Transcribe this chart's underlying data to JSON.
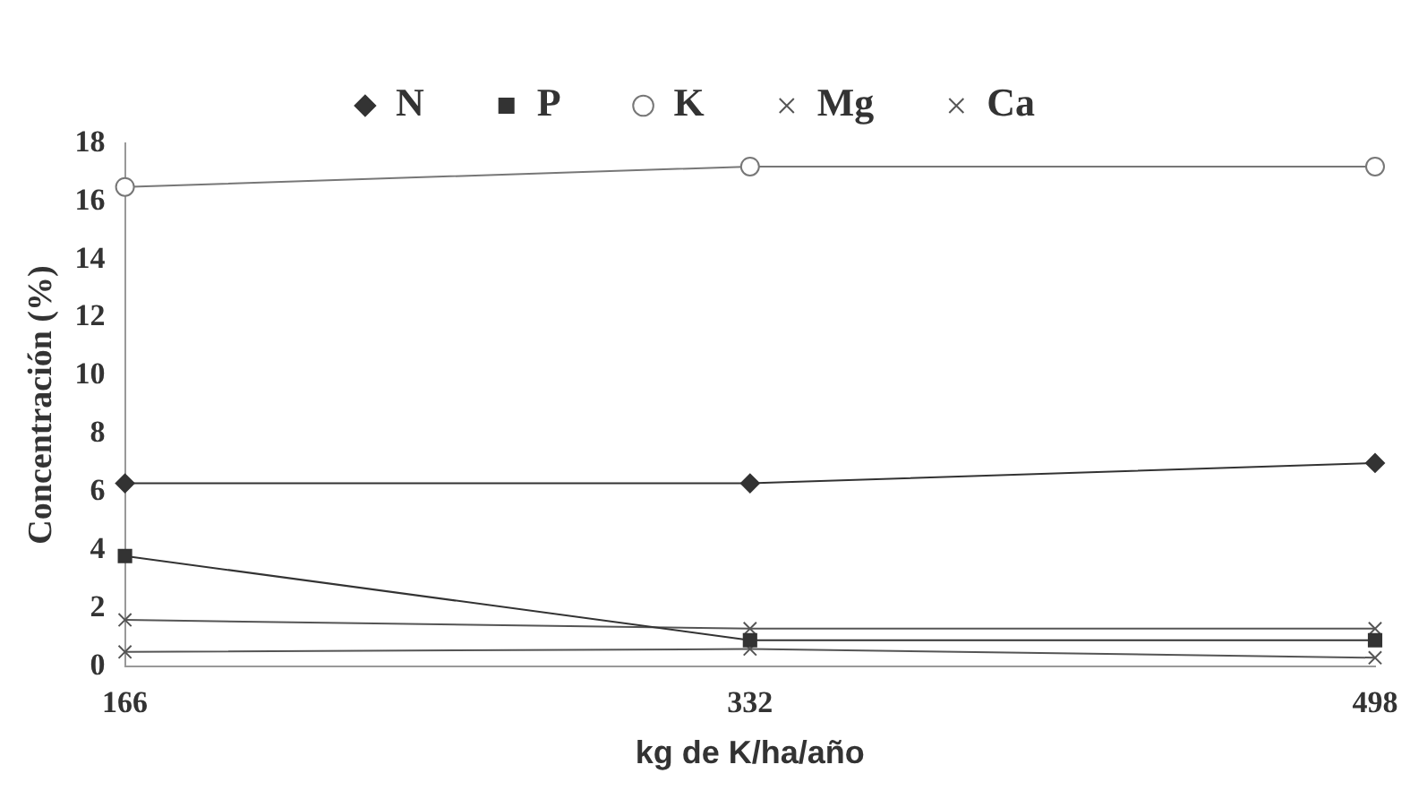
{
  "chart_data": {
    "type": "line",
    "xlabel": "kg de K/ha/año",
    "ylabel": "Concentración (%)",
    "categories": [
      "166",
      "332",
      "498"
    ],
    "ylim": [
      0,
      18
    ],
    "yticks": [
      0,
      2,
      4,
      6,
      8,
      10,
      12,
      14,
      16,
      18
    ],
    "grid": false,
    "legend": "top",
    "line_style": "solid",
    "series": [
      {
        "name": "N",
        "color": "#333333",
        "marker": "diamond",
        "values": [
          6.3,
          6.3,
          7.0
        ]
      },
      {
        "name": "P",
        "color": "#333333",
        "marker": "square",
        "values": [
          3.8,
          0.9,
          0.9
        ]
      },
      {
        "name": "K",
        "color": "#777777",
        "marker": "circle",
        "values": [
          16.5,
          17.2,
          17.2
        ]
      },
      {
        "name": "Mg",
        "color": "#555555",
        "marker": "cross",
        "values": [
          1.6,
          1.3,
          1.3
        ]
      },
      {
        "name": "Ca",
        "color": "#555555",
        "marker": "cross",
        "values": [
          0.5,
          0.6,
          0.3
        ]
      }
    ]
  }
}
